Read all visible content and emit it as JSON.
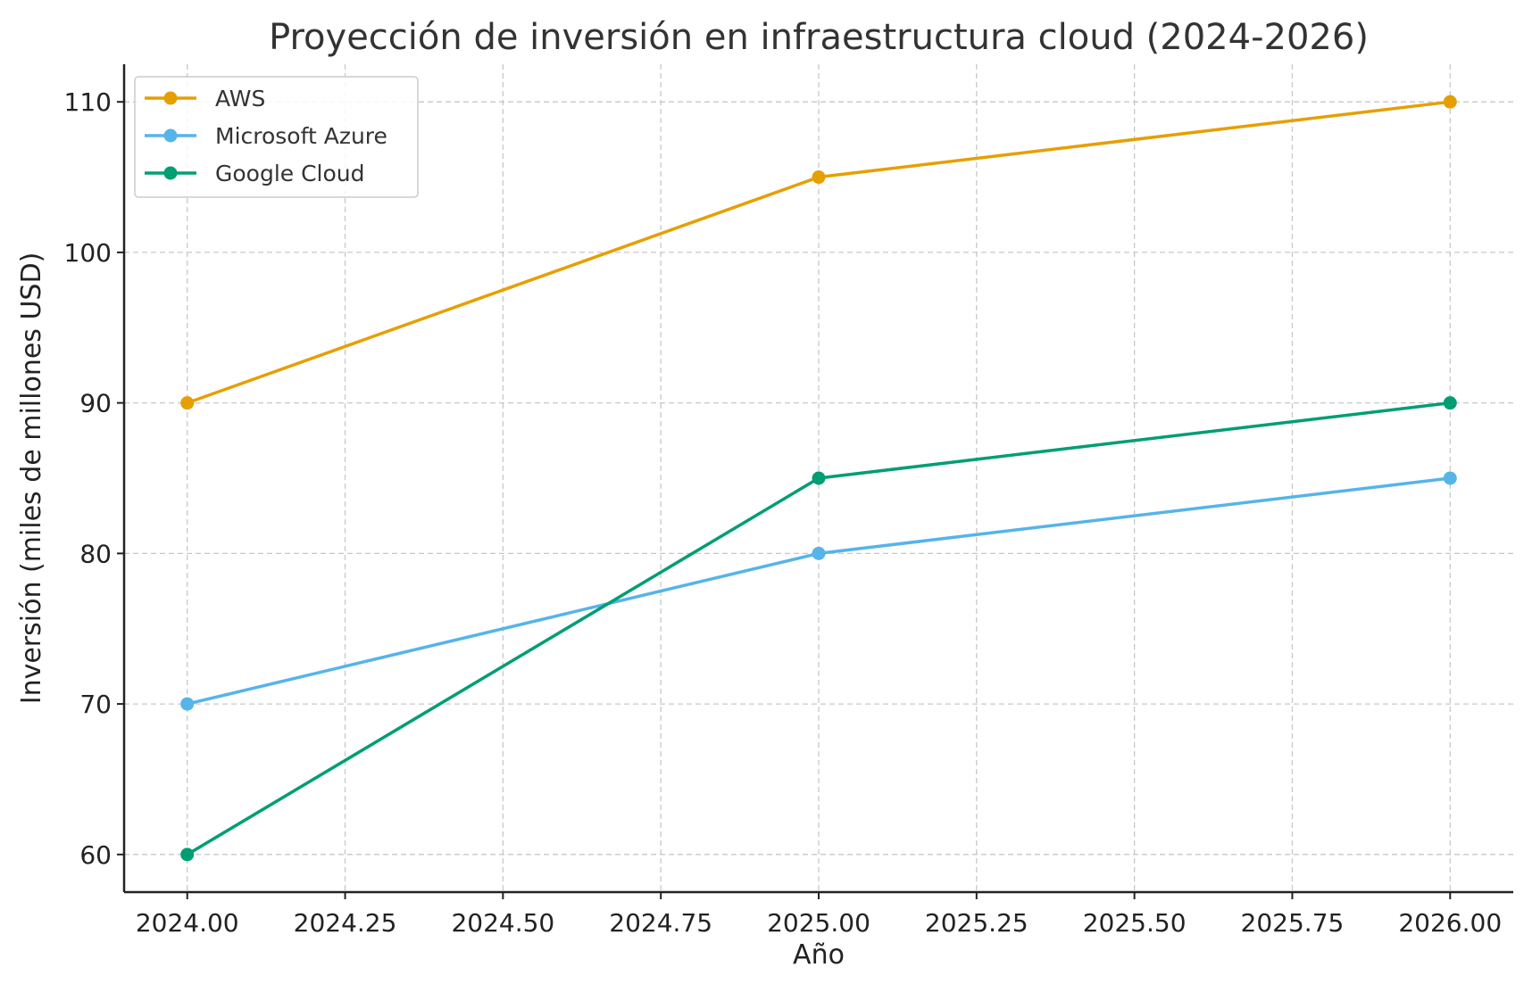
{
  "chart_data": {
    "type": "line",
    "title": "Proyección de inversión en infraestructura cloud (2024-2026)",
    "xlabel": "Año",
    "ylabel": "Inversión (miles de millones USD)",
    "x": [
      2024,
      2025,
      2026
    ],
    "xlim": [
      2023.9,
      2026.1
    ],
    "ylim": [
      57.5,
      112.5
    ],
    "xticks": [
      2024.0,
      2024.25,
      2024.5,
      2024.75,
      2025.0,
      2025.25,
      2025.5,
      2025.75,
      2026.0
    ],
    "xtick_labels": [
      "2024.00",
      "2024.25",
      "2024.50",
      "2024.75",
      "2025.00",
      "2025.25",
      "2025.50",
      "2025.75",
      "2026.00"
    ],
    "yticks": [
      60,
      70,
      80,
      90,
      100,
      110
    ],
    "ytick_labels": [
      "60",
      "70",
      "80",
      "90",
      "100",
      "110"
    ],
    "grid": true,
    "legend_position": "top-left",
    "series": [
      {
        "name": "AWS",
        "values": [
          90,
          105,
          110
        ],
        "color": "#E69F00"
      },
      {
        "name": "Microsoft Azure",
        "values": [
          70,
          80,
          85
        ],
        "color": "#56B4E9"
      },
      {
        "name": "Google Cloud",
        "values": [
          60,
          85,
          90
        ],
        "color": "#009E73"
      }
    ]
  }
}
